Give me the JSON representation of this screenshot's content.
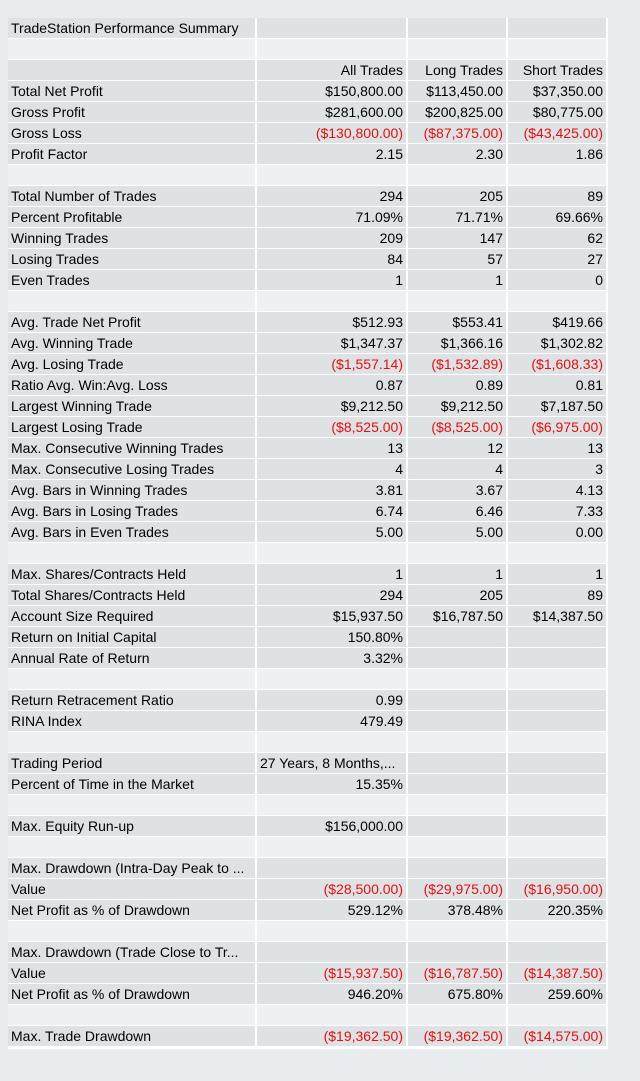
{
  "title": "TradeStation Performance Summary",
  "headers": [
    "All Trades",
    "Long Trades",
    "Short Trades"
  ],
  "rows": [
    {
      "type": "blank"
    },
    {
      "type": "header"
    },
    {
      "label": "Total Net Profit",
      "values": [
        "$150,800.00",
        "$113,450.00",
        "$37,350.00"
      ]
    },
    {
      "label": "Gross Profit",
      "values": [
        "$281,600.00",
        "$200,825.00",
        "$80,775.00"
      ]
    },
    {
      "label": "Gross Loss",
      "values": [
        "($130,800.00)",
        "($87,375.00)",
        "($43,425.00)"
      ]
    },
    {
      "label": "Profit Factor",
      "values": [
        "2.15",
        "2.30",
        "1.86"
      ]
    },
    {
      "type": "blank"
    },
    {
      "label": "Total Number of Trades",
      "values": [
        "294",
        "205",
        "89"
      ]
    },
    {
      "label": "Percent Profitable",
      "values": [
        "71.09%",
        "71.71%",
        "69.66%"
      ]
    },
    {
      "label": "Winning Trades",
      "values": [
        "209",
        "147",
        "62"
      ]
    },
    {
      "label": "Losing Trades",
      "values": [
        "84",
        "57",
        "27"
      ]
    },
    {
      "label": "Even Trades",
      "values": [
        "1",
        "1",
        "0"
      ]
    },
    {
      "type": "blank"
    },
    {
      "label": "Avg. Trade Net Profit",
      "values": [
        "$512.93",
        "$553.41",
        "$419.66"
      ]
    },
    {
      "label": "Avg. Winning Trade",
      "values": [
        "$1,347.37",
        "$1,366.16",
        "$1,302.82"
      ]
    },
    {
      "label": "Avg. Losing Trade",
      "values": [
        "($1,557.14)",
        "($1,532.89)",
        "($1,608.33)"
      ]
    },
    {
      "label": "Ratio Avg. Win:Avg. Loss",
      "values": [
        "0.87",
        "0.89",
        "0.81"
      ]
    },
    {
      "label": "Largest Winning Trade",
      "values": [
        "$9,212.50",
        "$9,212.50",
        "$7,187.50"
      ]
    },
    {
      "label": "Largest Losing Trade",
      "values": [
        "($8,525.00)",
        "($8,525.00)",
        "($6,975.00)"
      ]
    },
    {
      "label": "Max. Consecutive Winning Trades",
      "values": [
        "13",
        "12",
        "13"
      ]
    },
    {
      "label": "Max. Consecutive Losing Trades",
      "values": [
        "4",
        "4",
        "3"
      ]
    },
    {
      "label": "Avg. Bars in Winning Trades",
      "values": [
        "3.81",
        "3.67",
        "4.13"
      ]
    },
    {
      "label": "Avg. Bars in Losing Trades",
      "values": [
        "6.74",
        "6.46",
        "7.33"
      ]
    },
    {
      "label": "Avg. Bars in Even Trades",
      "values": [
        "5.00",
        "5.00",
        "0.00"
      ]
    },
    {
      "type": "blank"
    },
    {
      "label": "Max. Shares/Contracts Held",
      "values": [
        "1",
        "1",
        "1"
      ]
    },
    {
      "label": "Total Shares/Contracts Held",
      "values": [
        "294",
        "205",
        "89"
      ]
    },
    {
      "label": "Account Size Required",
      "values": [
        "$15,937.50",
        "$16,787.50",
        "$14,387.50"
      ]
    },
    {
      "label": "Return on Initial Capital",
      "values": [
        "150.80%",
        "",
        ""
      ]
    },
    {
      "label": "Annual Rate of Return",
      "values": [
        "3.32%",
        "",
        ""
      ]
    },
    {
      "type": "blank"
    },
    {
      "label": "Return Retracement Ratio",
      "values": [
        "0.99",
        "",
        ""
      ]
    },
    {
      "label": "RINA Index",
      "values": [
        "479.49",
        "",
        ""
      ]
    },
    {
      "type": "blank"
    },
    {
      "label": "Trading Period",
      "values": [
        "27 Years, 8 Months,...",
        "",
        ""
      ],
      "firstLeft": true
    },
    {
      "label": "Percent of Time in the Market",
      "values": [
        "15.35%",
        "",
        ""
      ]
    },
    {
      "type": "blank"
    },
    {
      "label": "Max. Equity Run-up",
      "values": [
        "$156,000.00",
        "",
        ""
      ]
    },
    {
      "type": "blank"
    },
    {
      "label": "Max. Drawdown (Intra-Day Peak to ...",
      "values": [
        "",
        "",
        ""
      ]
    },
    {
      "label": "Value",
      "values": [
        "($28,500.00)",
        "($29,975.00)",
        "($16,950.00)"
      ]
    },
    {
      "label": "Net Profit as % of Drawdown",
      "values": [
        "529.12%",
        "378.48%",
        "220.35%"
      ]
    },
    {
      "type": "blank"
    },
    {
      "label": "Max. Drawdown (Trade Close to Tr...",
      "values": [
        "",
        "",
        ""
      ]
    },
    {
      "label": "Value",
      "values": [
        "($15,937.50)",
        "($16,787.50)",
        "($14,387.50)"
      ]
    },
    {
      "label": "Net Profit as % of Drawdown",
      "values": [
        "946.20%",
        "675.80%",
        "259.60%"
      ]
    },
    {
      "type": "blank"
    },
    {
      "label": "Max. Trade Drawdown",
      "values": [
        "($19,362.50)",
        "($19,362.50)",
        "($14,575.00)"
      ]
    }
  ]
}
